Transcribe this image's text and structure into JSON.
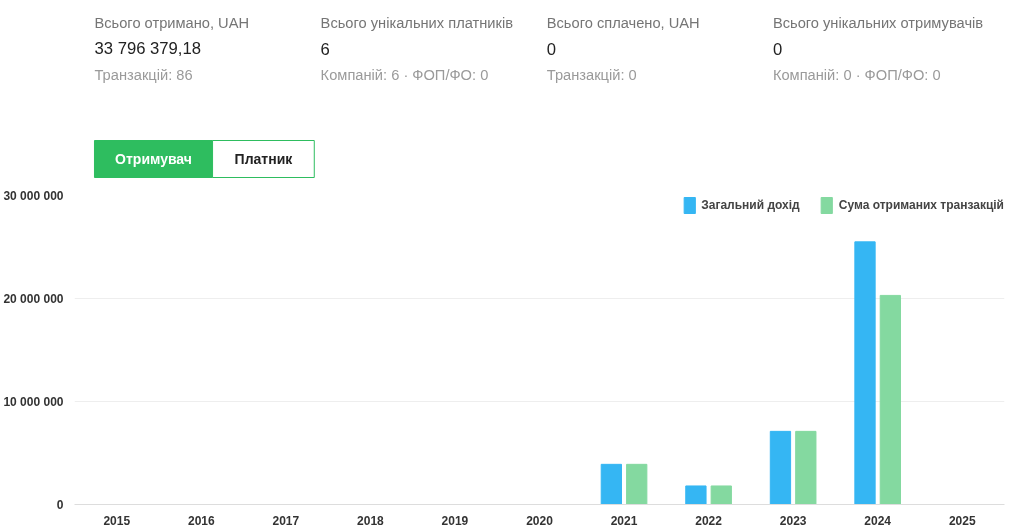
{
  "chart_data": [
    {
      "type": "other",
      "annotations": [
        "Всього отримано, UAH",
        "33 796 379,18",
        "Транзакцій: 86",
        "Всього унікальних платників",
        "6",
        "Компаній: 6 · ФОП/ФО: 0",
        "Всього сплачено, UAH",
        "0",
        "Транзакцій: 0",
        "Всього унікальних отримувачів",
        "0",
        "Компаній: 0 · ФОП/ФО: 0",
        "Отримувач",
        "Платник"
      ]
    },
    {
      "type": "bar",
      "categories": [
        "2015",
        "2016",
        "2017",
        "2018",
        "2019",
        "2020",
        "2021",
        "2022",
        "2023",
        "2024",
        "2025"
      ],
      "series": [
        {
          "name": "Загальний дохід",
          "color": "#35b6f3",
          "values": [
            null,
            null,
            null,
            null,
            null,
            null,
            3900000,
            1800000,
            7100000,
            25500000,
            null
          ]
        },
        {
          "name": "Сума отриманих транзакцій",
          "color": "#84d9a0",
          "values": [
            null,
            null,
            null,
            null,
            null,
            null,
            3900000,
            1800000,
            7100000,
            20300000,
            null
          ]
        }
      ],
      "ylim": [
        0,
        30000000
      ],
      "yticks": [
        {
          "value": 0,
          "label": "0"
        },
        {
          "value": 10000000,
          "label": "10 000 000"
        },
        {
          "value": 20000000,
          "label": "20 000 000"
        },
        {
          "value": 30000000,
          "label": "30 000 000"
        }
      ],
      "grid": "y",
      "legend": "top right"
    }
  ]
}
